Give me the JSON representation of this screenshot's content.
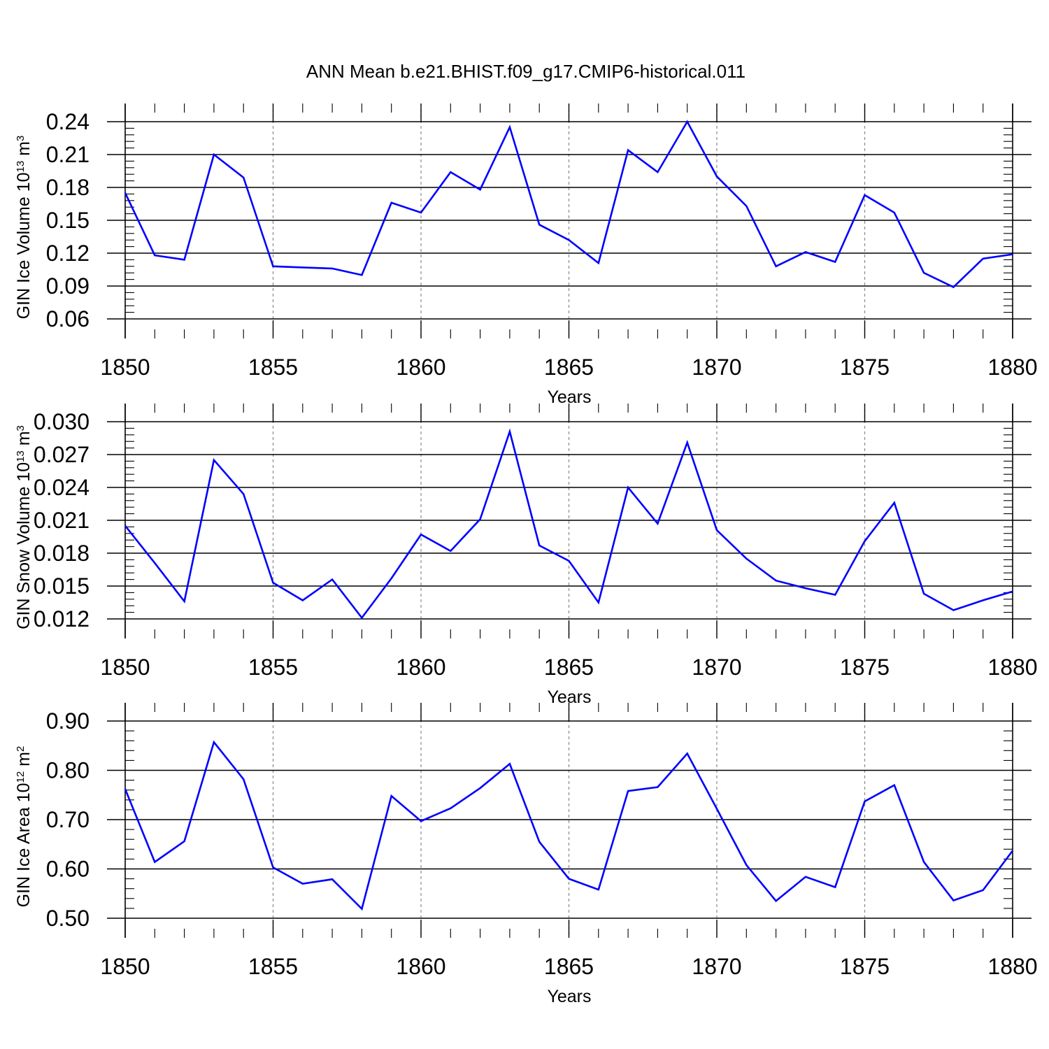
{
  "title": "ANN Mean b.e21.BHIST.f09_g17.CMIP6-historical.011",
  "line_color": "#0000ff",
  "chart_data": [
    {
      "type": "line",
      "title": "ANN Mean b.e21.BHIST.f09_g17.CMIP6-historical.011",
      "xlabel": "Years",
      "ylabel": {
        "base": "GIN Ice Volume 10",
        "exp": "13",
        "unit": " m",
        "unit_exp": "3"
      },
      "xlim": [
        1850,
        1880
      ],
      "ylim": [
        0.06,
        0.24
      ],
      "xticks": [
        "1850",
        "1855",
        "1860",
        "1865",
        "1870",
        "1875",
        "1880"
      ],
      "yticks": [
        "0.06",
        "0.09",
        "0.12",
        "0.15",
        "0.18",
        "0.21",
        "0.24"
      ],
      "grid": "vertical dashed at major x ticks",
      "x": [
        1850,
        1851,
        1852,
        1853,
        1854,
        1855,
        1856,
        1857,
        1858,
        1859,
        1860,
        1861,
        1862,
        1863,
        1864,
        1865,
        1866,
        1867,
        1868,
        1869,
        1870,
        1871,
        1872,
        1873,
        1874,
        1875,
        1876,
        1877,
        1878,
        1879,
        1880
      ],
      "values": [
        0.175,
        0.118,
        0.114,
        0.21,
        0.189,
        0.108,
        0.107,
        0.106,
        0.1,
        0.166,
        0.157,
        0.194,
        0.178,
        0.235,
        0.146,
        0.132,
        0.111,
        0.214,
        0.194,
        0.24,
        0.19,
        0.163,
        0.108,
        0.121,
        0.112,
        0.173,
        0.157,
        0.102,
        0.089,
        0.115,
        0.119
      ]
    },
    {
      "type": "line",
      "xlabel": "Years",
      "ylabel": {
        "base": "GIN Snow Volume 10",
        "exp": "13",
        "unit": " m",
        "unit_exp": "3"
      },
      "xlim": [
        1850,
        1880
      ],
      "ylim": [
        0.012,
        0.03
      ],
      "xticks": [
        "1850",
        "1855",
        "1860",
        "1865",
        "1870",
        "1875",
        "1880"
      ],
      "yticks": [
        "0.012",
        "0.015",
        "0.018",
        "0.021",
        "0.024",
        "0.027",
        "0.030"
      ],
      "grid": "vertical dashed at major x ticks",
      "x": [
        1850,
        1851,
        1852,
        1853,
        1854,
        1855,
        1856,
        1857,
        1858,
        1859,
        1860,
        1861,
        1862,
        1863,
        1864,
        1865,
        1866,
        1867,
        1868,
        1869,
        1870,
        1871,
        1872,
        1873,
        1874,
        1875,
        1876,
        1877,
        1878,
        1879,
        1880
      ],
      "values": [
        0.0205,
        0.0171,
        0.0136,
        0.0265,
        0.0234,
        0.0153,
        0.0137,
        0.0156,
        0.0121,
        0.0157,
        0.0197,
        0.0182,
        0.0211,
        0.0291,
        0.0187,
        0.0173,
        0.0135,
        0.024,
        0.0207,
        0.0281,
        0.0201,
        0.0175,
        0.0155,
        0.0148,
        0.0142,
        0.0191,
        0.0226,
        0.0143,
        0.0128,
        0.0137,
        0.0145
      ]
    },
    {
      "type": "line",
      "xlabel": "Years",
      "ylabel": {
        "base": "GIN Ice Area 10",
        "exp": "12",
        "unit": " m",
        "unit_exp": "2"
      },
      "xlim": [
        1850,
        1880
      ],
      "ylim": [
        0.5,
        0.9
      ],
      "xticks": [
        "1850",
        "1855",
        "1860",
        "1865",
        "1870",
        "1875",
        "1880"
      ],
      "yticks": [
        "0.50",
        "0.60",
        "0.70",
        "0.80",
        "0.90"
      ],
      "grid": "vertical dashed at major x ticks",
      "x": [
        1850,
        1851,
        1852,
        1853,
        1854,
        1855,
        1856,
        1857,
        1858,
        1859,
        1860,
        1861,
        1862,
        1863,
        1864,
        1865,
        1866,
        1867,
        1868,
        1869,
        1870,
        1871,
        1872,
        1873,
        1874,
        1875,
        1876,
        1877,
        1878,
        1879,
        1880
      ],
      "values": [
        0.762,
        0.614,
        0.656,
        0.857,
        0.782,
        0.603,
        0.57,
        0.579,
        0.519,
        0.748,
        0.697,
        0.723,
        0.764,
        0.813,
        0.655,
        0.58,
        0.558,
        0.758,
        0.766,
        0.834,
        0.722,
        0.608,
        0.535,
        0.584,
        0.563,
        0.737,
        0.77,
        0.614,
        0.536,
        0.557,
        0.637
      ]
    }
  ]
}
